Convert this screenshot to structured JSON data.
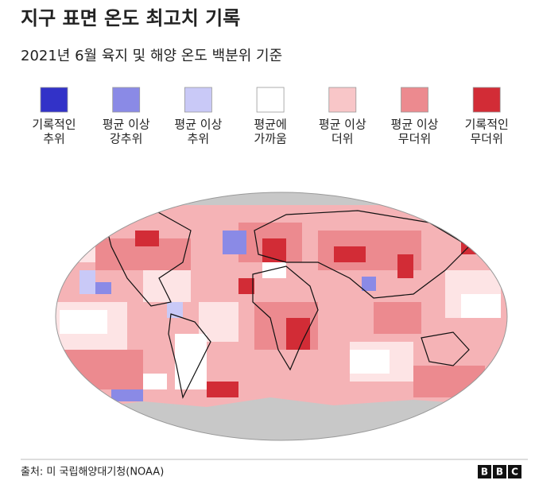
{
  "header": {
    "title": "지구 표면 온도 최고치 기록",
    "subtitle": "2021년 6월 육지 및 해양 온도 백분위 기준"
  },
  "legend": [
    {
      "color": "#3232c8",
      "label": [
        "기록적인",
        "추위"
      ]
    },
    {
      "color": "#8a8ae6",
      "label": [
        "평균 이상",
        "강추위"
      ]
    },
    {
      "color": "#c9c9f7",
      "label": [
        "평균 이상",
        "추위"
      ]
    },
    {
      "color": "#ffffff",
      "label": [
        "평균에",
        "가까움"
      ]
    },
    {
      "color": "#f8c6c8",
      "label": [
        "평균 이상",
        "더위"
      ]
    },
    {
      "color": "#ec8a8f",
      "label": [
        "평균 이상",
        "무더위"
      ]
    },
    {
      "color": "#d22c36",
      "label": [
        "기록적인",
        "무더위"
      ]
    }
  ],
  "footer": {
    "source": "출처: 미 국립해양대기청(NOAA)",
    "logo": [
      "B",
      "B",
      "C"
    ]
  }
}
